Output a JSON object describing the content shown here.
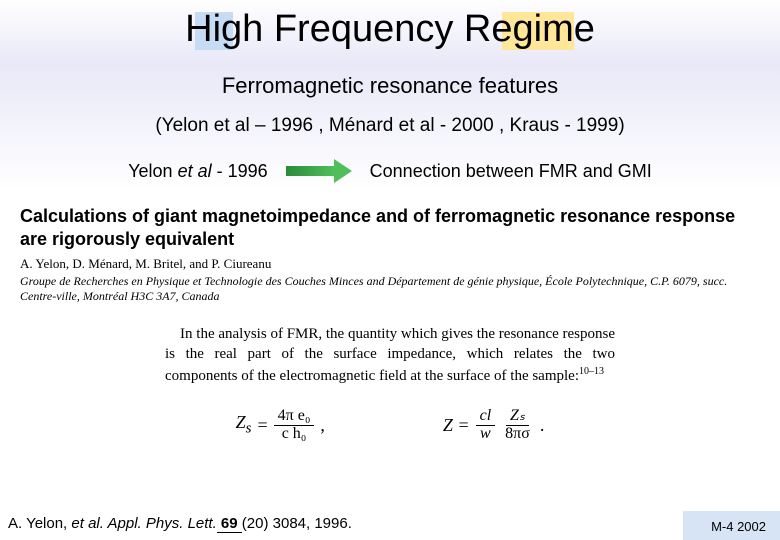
{
  "title": "High Frequency Regime",
  "highlights": {
    "hl1_color": "#c6dcf4",
    "hl2_color": "#ffe699"
  },
  "subtitle": "Ferromagnetic resonance features",
  "refs_line": "(Yelon et al – 1996 , Ménard et al - 2000 , Kraus - 1999)",
  "line3_left_pre": "Yelon ",
  "line3_left_ital": "et al",
  "line3_left_post": " - 1996",
  "arrow": {
    "shaft_color_start": "#2a8a3a",
    "shaft_color_end": "#4fbf5c",
    "head_color": "#4fbf5c"
  },
  "line3_right": "Connection between FMR and GMI",
  "paper": {
    "title": "Calculations of giant magnetoimpedance and of ferromagnetic resonance response are rigorously equivalent",
    "authors": "A. Yelon, D. Ménard, M. Britel, and P. Ciureanu",
    "affil": "Groupe de Recherches en Physique et Technologie des Couches Minces and Département de génie physique, École Polytechnique, C.P. 6079, succ. Centre-ville, Montréal H3C 3A7, Canada"
  },
  "excerpt_pre": "In the analysis of FMR, the quantity which gives the resonance response is the real part of the surface impedance, which relates the two components of the electromagnetic field at the surface of the sample:",
  "excerpt_ref": "10–13",
  "eq1": {
    "lhs": "Z",
    "lhs_sub": "s",
    "pre": " = ",
    "num": "4π  e₀",
    "den": "c   h₀",
    "post": " ,"
  },
  "eq2": {
    "lhs": "Z = ",
    "num1": "cl",
    "den1": "w",
    "mid": " · ",
    "num2": "Zₛ",
    "den2": "8πσ",
    "post": " ."
  },
  "footer": {
    "pre": "A. Yelon, ",
    "ital": "et al. Appl. Phys. Lett.",
    "vol": " 69 ",
    "rest": "(20) 3084, 1996."
  },
  "slide_num": "M-4 2002",
  "colors": {
    "background_top": "#ffffff",
    "background_band": "#e8e8f8",
    "slide_num_bg": "#d6e4f5"
  }
}
